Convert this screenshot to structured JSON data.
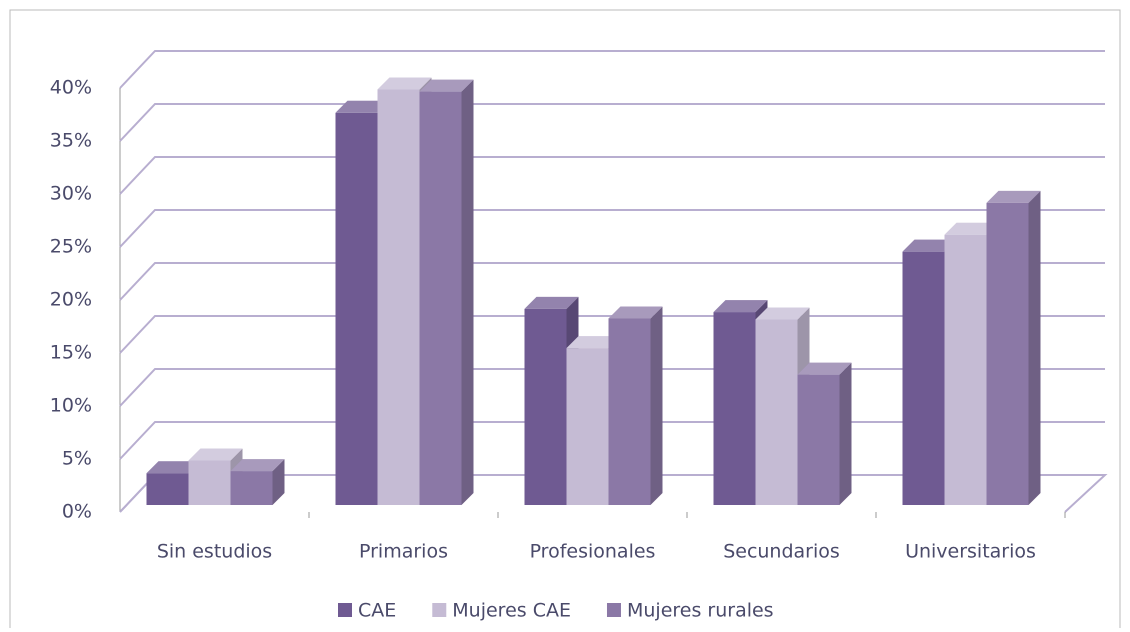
{
  "chart_data": {
    "type": "bar3d",
    "categories": [
      "Sin estudios",
      "Primarios",
      "Profesionales",
      "Secundarios",
      "Universitarios"
    ],
    "series": [
      {
        "name": "CAE",
        "color": "#6f5a92",
        "values": [
          3,
          37,
          18.5,
          18.2,
          23.9
        ]
      },
      {
        "name": "Mujeres CAE",
        "color": "#c5bbd4",
        "values": [
          4.2,
          39.2,
          14.8,
          17.5,
          25.5
        ]
      },
      {
        "name": "Mujeres rurales",
        "color": "#8b78a6",
        "values": [
          3.2,
          39,
          17.6,
          12.3,
          28.5
        ]
      }
    ],
    "ylim": [
      0,
      40
    ],
    "yticks": [
      {
        "value": 0,
        "label": "0%"
      },
      {
        "value": 5,
        "label": "5%"
      },
      {
        "value": 10,
        "label": "10%"
      },
      {
        "value": 15,
        "label": "15%"
      },
      {
        "value": 20,
        "label": "20%"
      },
      {
        "value": 25,
        "label": "25%"
      },
      {
        "value": 30,
        "label": "30%"
      },
      {
        "value": 35,
        "label": "35%"
      },
      {
        "value": 40,
        "label": "40%"
      }
    ],
    "grid": true,
    "legend": "bottom"
  }
}
